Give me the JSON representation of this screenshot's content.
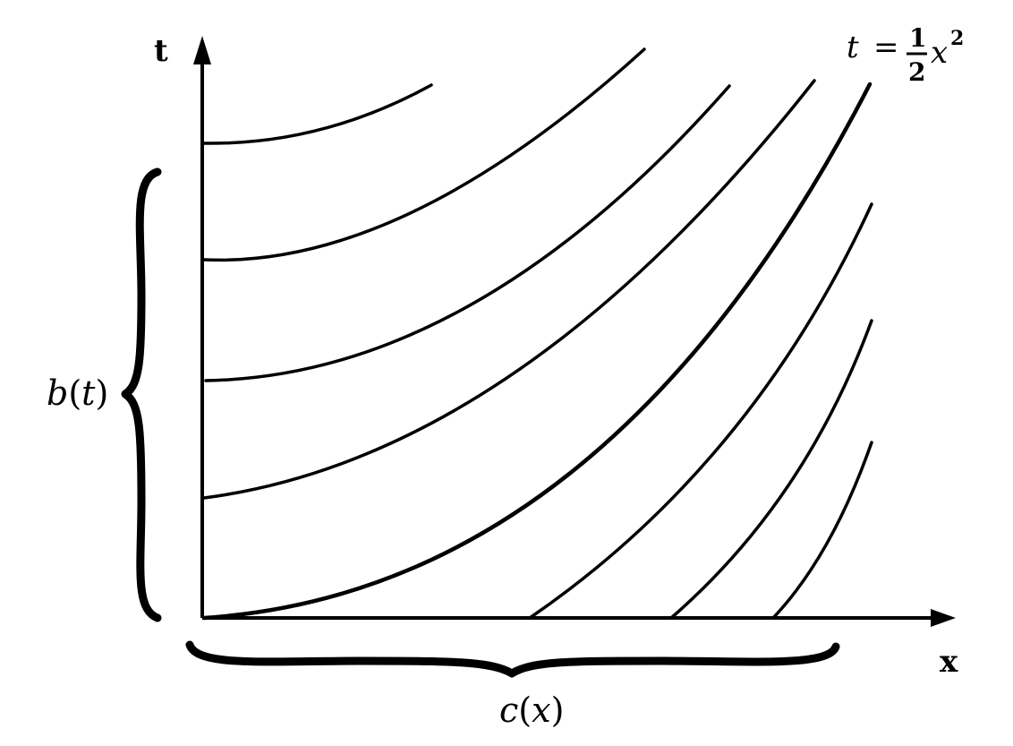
{
  "axes": {
    "horizontal_label": "x",
    "vertical_label": "t"
  },
  "braces": {
    "left_label_fn": "b",
    "left_label_arg": "t",
    "bottom_label_fn": "c",
    "bottom_label_arg": "x"
  },
  "curve_annotation": {
    "lhs": "t",
    "equals": "=",
    "numerator": "1",
    "denominator": "2",
    "variable": "x",
    "exponent": "2"
  },
  "colors": {
    "ink": "#000000",
    "background": "#ffffff"
  }
}
